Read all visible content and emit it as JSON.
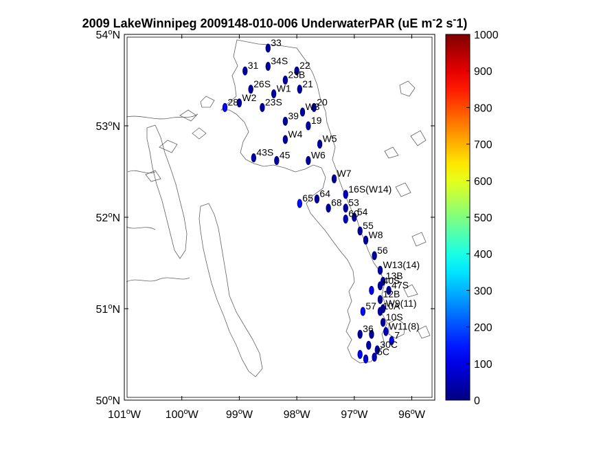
{
  "title": {
    "main": "2009 LakeWinnipeg 2009148-010-006 UnderwaterPAR (uE m",
    "sup1": "-",
    "mid": "2 s",
    "sup2": "-",
    "end": "1)"
  },
  "chart_data": {
    "type": "scatter",
    "title": "2009 LakeWinnipeg 2009148-010-006 UnderwaterPAR (uE m-2 s-1)",
    "xlim": [
      -101,
      -95.6
    ],
    "ylim": [
      50,
      54
    ],
    "x_ticks": [
      {
        "v": -101,
        "deg": "101",
        "hem": "W"
      },
      {
        "v": -100,
        "deg": "100",
        "hem": "W"
      },
      {
        "v": -99,
        "deg": "99",
        "hem": "W"
      },
      {
        "v": -98,
        "deg": "98",
        "hem": "W"
      },
      {
        "v": -97,
        "deg": "97",
        "hem": "W"
      },
      {
        "v": -96,
        "deg": "96",
        "hem": "W"
      }
    ],
    "y_ticks": [
      {
        "v": 50,
        "deg": "50",
        "hem": "N"
      },
      {
        "v": 51,
        "deg": "51",
        "hem": "N"
      },
      {
        "v": 52,
        "deg": "52",
        "hem": "N"
      },
      {
        "v": 53,
        "deg": "53",
        "hem": "N"
      },
      {
        "v": 54,
        "deg": "54",
        "hem": "N"
      }
    ],
    "colorbar": {
      "min": 0,
      "max": 1000,
      "ticks": [
        "0",
        "100",
        "200",
        "300",
        "400",
        "500",
        "600",
        "700",
        "800",
        "900",
        "1000"
      ],
      "colormap": "jet"
    },
    "stations": [
      {
        "label": "33",
        "lon": -98.5,
        "lat": 53.85,
        "value": 20
      },
      {
        "label": "31",
        "lon": -98.9,
        "lat": 53.6,
        "value": 25
      },
      {
        "label": "34S",
        "lon": -98.5,
        "lat": 53.65,
        "value": 20
      },
      {
        "label": "22",
        "lon": -98.0,
        "lat": 53.6,
        "value": 30
      },
      {
        "label": "23B",
        "lon": -98.2,
        "lat": 53.5,
        "value": 20
      },
      {
        "label": "26S",
        "lon": -98.8,
        "lat": 53.4,
        "value": 20
      },
      {
        "label": "W1",
        "lon": -98.4,
        "lat": 53.35,
        "value": 20
      },
      {
        "label": "21",
        "lon": -97.95,
        "lat": 53.4,
        "value": 25
      },
      {
        "label": "28",
        "lon": -99.25,
        "lat": 53.2,
        "value": 120
      },
      {
        "label": "W2",
        "lon": -99.0,
        "lat": 53.25,
        "value": 30
      },
      {
        "label": "23S",
        "lon": -98.6,
        "lat": 53.2,
        "value": 20
      },
      {
        "label": "W3",
        "lon": -97.9,
        "lat": 53.15,
        "value": 20
      },
      {
        "label": "20",
        "lon": -97.7,
        "lat": 53.2,
        "value": 25
      },
      {
        "label": "39",
        "lon": -98.2,
        "lat": 53.05,
        "value": 20
      },
      {
        "label": "19",
        "lon": -97.8,
        "lat": 53.0,
        "value": 20
      },
      {
        "label": "W4",
        "lon": -98.2,
        "lat": 52.85,
        "value": 20
      },
      {
        "label": "W5",
        "lon": -97.6,
        "lat": 52.8,
        "value": 25
      },
      {
        "label": "43S",
        "lon": -98.75,
        "lat": 52.65,
        "value": 40
      },
      {
        "label": "45",
        "lon": -98.35,
        "lat": 52.62,
        "value": 20
      },
      {
        "label": "W6",
        "lon": -97.8,
        "lat": 52.62,
        "value": 20
      },
      {
        "label": "W7",
        "lon": -97.35,
        "lat": 52.42,
        "value": 20
      },
      {
        "label": "16S(W14)",
        "lon": -97.15,
        "lat": 52.25,
        "value": 60
      },
      {
        "label": "65",
        "lon": -97.95,
        "lat": 52.15,
        "value": 140
      },
      {
        "label": "64",
        "lon": -97.65,
        "lat": 52.2,
        "value": 20
      },
      {
        "label": "68",
        "lon": -97.45,
        "lat": 52.1,
        "value": 20
      },
      {
        "label": "53",
        "lon": -97.15,
        "lat": 52.1,
        "value": 20
      },
      {
        "label": "60",
        "lon": -97.15,
        "lat": 51.98,
        "value": 50
      },
      {
        "label": "54",
        "lon": -97.0,
        "lat": 52.0,
        "value": 20
      },
      {
        "label": "55",
        "lon": -96.9,
        "lat": 51.85,
        "value": 20
      },
      {
        "label": "W8",
        "lon": -96.8,
        "lat": 51.75,
        "value": 20
      },
      {
        "label": "56",
        "lon": -96.65,
        "lat": 51.58,
        "value": 20
      },
      {
        "label": "W13(14)",
        "lon": -96.55,
        "lat": 51.42,
        "value": 30
      },
      {
        "label": "13B",
        "lon": -96.5,
        "lat": 51.3,
        "value": 20
      },
      {
        "label": "40S",
        "lon": -96.55,
        "lat": 51.25,
        "value": 20
      },
      {
        "label": "47S",
        "lon": -96.4,
        "lat": 51.2,
        "value": 20
      },
      {
        "label": "",
        "lon": -96.7,
        "lat": 51.2,
        "value": 120
      },
      {
        "label": "12B",
        "lon": -96.55,
        "lat": 51.1,
        "value": 20
      },
      {
        "label": "W9(11)",
        "lon": -96.5,
        "lat": 51.0,
        "value": 20
      },
      {
        "label": "57",
        "lon": -96.85,
        "lat": 50.97,
        "value": 140
      },
      {
        "label": "10A",
        "lon": -96.55,
        "lat": 50.97,
        "value": 20
      },
      {
        "label": "10S",
        "lon": -96.5,
        "lat": 50.85,
        "value": 20
      },
      {
        "label": "W11(8)",
        "lon": -96.45,
        "lat": 50.75,
        "value": 60
      },
      {
        "label": "36",
        "lon": -96.9,
        "lat": 50.72,
        "value": 20
      },
      {
        "label": "",
        "lon": -96.7,
        "lat": 50.72,
        "value": 20
      },
      {
        "label": "7",
        "lon": -96.35,
        "lat": 50.65,
        "value": 120
      },
      {
        "label": "30C",
        "lon": -96.6,
        "lat": 50.55,
        "value": 20
      },
      {
        "label": "",
        "lon": -96.75,
        "lat": 50.6,
        "value": 40
      },
      {
        "label": "",
        "lon": -96.9,
        "lat": 50.5,
        "value": 120
      },
      {
        "label": "5C",
        "lon": -96.65,
        "lat": 50.47,
        "value": 50
      },
      {
        "label": "",
        "lon": -96.8,
        "lat": 50.45,
        "value": 90
      }
    ]
  }
}
